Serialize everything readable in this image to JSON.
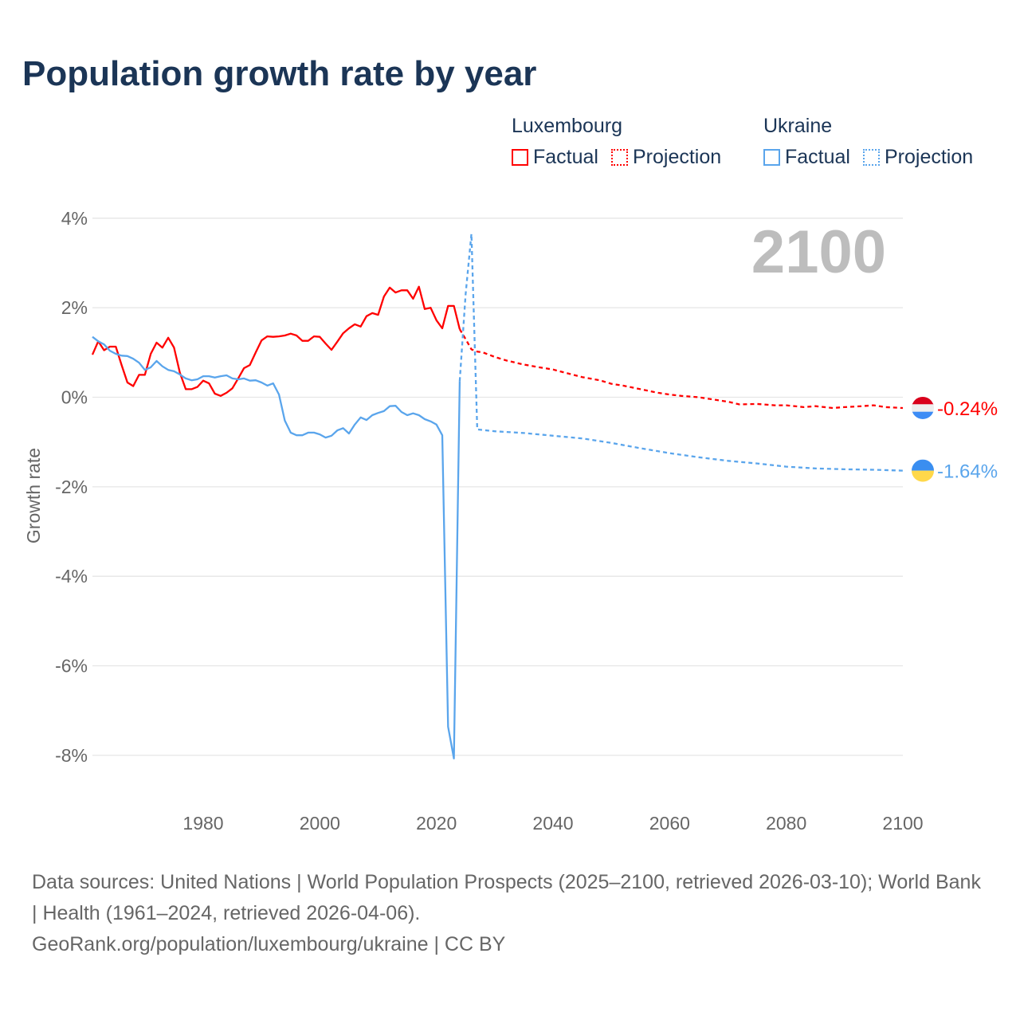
{
  "title": "Population growth rate by year",
  "legend": {
    "groups": [
      {
        "country": "Luxembourg",
        "factual": "Factual",
        "projection": "Projection",
        "color": "#ff0000"
      },
      {
        "country": "Ukraine",
        "factual": "Factual",
        "projection": "Projection",
        "color": "#5aa5ec"
      }
    ]
  },
  "source": {
    "line1": "Data sources: United Nations | World Population Prospects (2025–2100, retrieved 2026-03-10); World Bank | Health (1961–2024, retrieved 2026-04-06).",
    "line2": "GeoRank.org/population/luxembourg/ukraine | CC BY"
  },
  "chart_data": {
    "type": "line",
    "title": "Population growth rate by year",
    "xlabel": "",
    "ylabel": "Growth rate",
    "year_display": "2100",
    "xlim": [
      1961,
      2100
    ],
    "ylim": [
      -9,
      4
    ],
    "xticks": [
      1980,
      2000,
      2020,
      2040,
      2060,
      2080,
      2100
    ],
    "xtick_labels": [
      "1980",
      "2000",
      "2020",
      "2040",
      "2060",
      "2080",
      "2100"
    ],
    "yticks": [
      4,
      2,
      0,
      -2,
      -4,
      -6,
      -8
    ],
    "ytick_labels": [
      "4%",
      "2%",
      "0%",
      "-2%",
      "-4%",
      "-6%",
      "-8%"
    ],
    "grid": true,
    "legend_position": "top-right",
    "series": [
      {
        "name": "Luxembourg Factual",
        "country": "Luxembourg",
        "kind": "factual",
        "color": "#ff0000",
        "x": [
          1961,
          1962,
          1963,
          1964,
          1965,
          1966,
          1967,
          1968,
          1969,
          1970,
          1971,
          1972,
          1973,
          1974,
          1975,
          1976,
          1977,
          1978,
          1979,
          1980,
          1981,
          1982,
          1983,
          1984,
          1985,
          1986,
          1987,
          1988,
          1989,
          1990,
          1991,
          1992,
          1993,
          1994,
          1995,
          1996,
          1997,
          1998,
          1999,
          2000,
          2001,
          2002,
          2003,
          2004,
          2005,
          2006,
          2007,
          2008,
          2009,
          2010,
          2011,
          2012,
          2013,
          2014,
          2015,
          2016,
          2017,
          2018,
          2019,
          2020,
          2021,
          2022,
          2023,
          2024
        ],
        "y": [
          0.95,
          1.25,
          1.05,
          1.13,
          1.13,
          0.72,
          0.33,
          0.25,
          0.5,
          0.5,
          0.97,
          1.22,
          1.11,
          1.33,
          1.11,
          0.55,
          0.18,
          0.18,
          0.23,
          0.37,
          0.31,
          0.08,
          0.03,
          0.1,
          0.2,
          0.42,
          0.65,
          0.72,
          1.0,
          1.27,
          1.36,
          1.35,
          1.36,
          1.38,
          1.42,
          1.38,
          1.26,
          1.26,
          1.36,
          1.35,
          1.2,
          1.06,
          1.24,
          1.43,
          1.54,
          1.63,
          1.58,
          1.81,
          1.88,
          1.84,
          2.25,
          2.45,
          2.34,
          2.39,
          2.39,
          2.2,
          2.47,
          1.97,
          2.0,
          1.72,
          1.54,
          2.04,
          2.04,
          1.52
        ]
      },
      {
        "name": "Luxembourg Projection",
        "country": "Luxembourg",
        "kind": "projection",
        "color": "#ff0000",
        "x": [
          2024,
          2025,
          2026,
          2027,
          2028,
          2030,
          2032,
          2035,
          2038,
          2040,
          2042,
          2045,
          2048,
          2050,
          2052,
          2055,
          2058,
          2060,
          2062,
          2065,
          2068,
          2070,
          2072,
          2075,
          2078,
          2080,
          2083,
          2085,
          2088,
          2090,
          2093,
          2095,
          2097,
          2100
        ],
        "y": [
          1.52,
          1.3,
          1.07,
          1.02,
          1.0,
          0.9,
          0.82,
          0.73,
          0.66,
          0.62,
          0.55,
          0.45,
          0.38,
          0.3,
          0.26,
          0.18,
          0.1,
          0.06,
          0.03,
          0.0,
          -0.06,
          -0.1,
          -0.16,
          -0.15,
          -0.18,
          -0.18,
          -0.22,
          -0.2,
          -0.24,
          -0.22,
          -0.2,
          -0.18,
          -0.22,
          -0.24
        ]
      },
      {
        "name": "Ukraine Factual",
        "country": "Ukraine",
        "kind": "factual",
        "color": "#5aa5ec",
        "x": [
          1961,
          1962,
          1963,
          1964,
          1965,
          1966,
          1967,
          1968,
          1969,
          1970,
          1971,
          1972,
          1973,
          1974,
          1975,
          1976,
          1977,
          1978,
          1979,
          1980,
          1981,
          1982,
          1983,
          1984,
          1985,
          1986,
          1987,
          1988,
          1989,
          1990,
          1991,
          1992,
          1993,
          1994,
          1995,
          1996,
          1997,
          1998,
          1999,
          2000,
          2001,
          2002,
          2003,
          2004,
          2005,
          2006,
          2007,
          2008,
          2009,
          2010,
          2011,
          2012,
          2013,
          2014,
          2015,
          2016,
          2017,
          2018,
          2019,
          2020,
          2021,
          2022,
          2023,
          2024
        ],
        "y": [
          1.35,
          1.25,
          1.18,
          1.04,
          0.97,
          0.93,
          0.92,
          0.86,
          0.77,
          0.61,
          0.67,
          0.81,
          0.69,
          0.61,
          0.58,
          0.51,
          0.42,
          0.38,
          0.4,
          0.47,
          0.47,
          0.44,
          0.47,
          0.49,
          0.42,
          0.4,
          0.42,
          0.37,
          0.38,
          0.33,
          0.26,
          0.31,
          0.06,
          -0.52,
          -0.79,
          -0.85,
          -0.85,
          -0.79,
          -0.79,
          -0.83,
          -0.9,
          -0.86,
          -0.74,
          -0.69,
          -0.81,
          -0.61,
          -0.45,
          -0.51,
          -0.4,
          -0.35,
          -0.31,
          -0.2,
          -0.19,
          -0.33,
          -0.4,
          -0.36,
          -0.4,
          -0.49,
          -0.54,
          -0.61,
          -0.85,
          -7.36,
          -8.07,
          0.36
        ]
      },
      {
        "name": "Ukraine Projection",
        "country": "Ukraine",
        "kind": "projection",
        "color": "#5aa5ec",
        "x": [
          2024,
          2025,
          2026,
          2027,
          2030,
          2035,
          2040,
          2045,
          2050,
          2055,
          2060,
          2065,
          2070,
          2075,
          2080,
          2085,
          2090,
          2095,
          2100
        ],
        "y": [
          0.36,
          2.3,
          3.65,
          -0.72,
          -0.76,
          -0.8,
          -0.86,
          -0.92,
          -1.02,
          -1.14,
          -1.25,
          -1.34,
          -1.42,
          -1.48,
          -1.55,
          -1.59,
          -1.61,
          -1.62,
          -1.64
        ]
      }
    ],
    "end_labels": [
      {
        "country": "Luxembourg",
        "value": -0.24,
        "text": "-0.24%",
        "color": "#ff0000"
      },
      {
        "country": "Ukraine",
        "value": -1.64,
        "text": "-1.64%",
        "color": "#5aa5ec"
      }
    ]
  }
}
